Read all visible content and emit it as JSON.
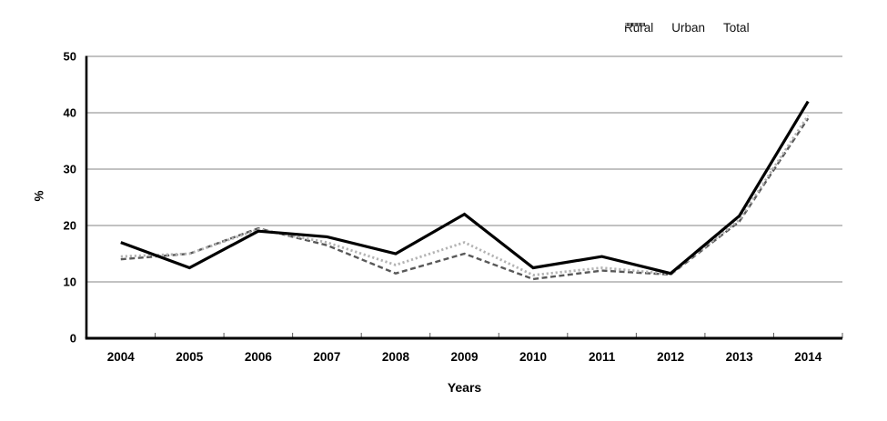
{
  "chart_data": {
    "type": "line",
    "title": "",
    "xlabel": "Years",
    "ylabel": "%",
    "x": [
      "2004",
      "2005",
      "2006",
      "2007",
      "2008",
      "2009",
      "2010",
      "2011",
      "2012",
      "2013",
      "2014"
    ],
    "ylim": [
      0,
      50
    ],
    "y_ticks": [
      0,
      10,
      20,
      30,
      40,
      50
    ],
    "grid": "horizontal",
    "legend_position": "top-right",
    "series": [
      {
        "name": "Rural",
        "color": "#000000",
        "style": "solid",
        "values": [
          17,
          12.5,
          19,
          18,
          15,
          22,
          12.5,
          14.5,
          11.5,
          21.7,
          42
        ]
      },
      {
        "name": "Urban",
        "color": "#595959",
        "style": "dashed",
        "values": [
          14,
          15,
          19.5,
          16.5,
          11.5,
          15,
          10.5,
          12,
          11.3,
          20.7,
          39
        ]
      },
      {
        "name": "Total",
        "color": "#b3b3b3",
        "style": "dotted",
        "values": [
          14.5,
          15,
          19.3,
          17,
          13,
          17,
          11.2,
          12.5,
          11.4,
          21,
          39.5
        ]
      }
    ]
  },
  "colors": {
    "gridline": "#858585",
    "axis": "#000000",
    "boundary_tick": "#5a5a5a"
  }
}
